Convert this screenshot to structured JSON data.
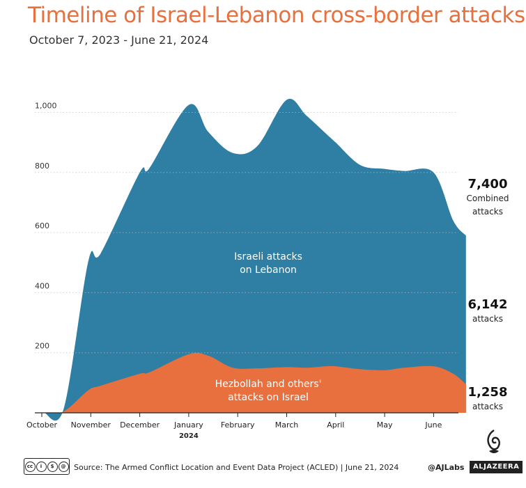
{
  "title": "Timeline of Israel-Lebanon cross-border attacks",
  "subtitle": "October 7, 2023 - June 21, 2024",
  "chart_data": {
    "type": "area",
    "stacked": true,
    "x_ticks": [
      "October",
      "November",
      "December",
      "January",
      "February",
      "March",
      "April",
      "May",
      "June"
    ],
    "x_year_label": "2024",
    "y_ticks": [
      "200",
      "400",
      "600",
      "800",
      "1,000"
    ],
    "ylim": [
      0,
      1100
    ],
    "grid": "horizontal-dotted",
    "x_month_index": [
      0.05,
      0.45,
      0.95,
      1.2,
      2.0,
      2.2,
      3.0,
      3.4,
      3.9,
      4.4,
      5.0,
      5.4,
      5.8,
      6.0,
      6.5,
      7.0,
      7.4,
      8.0,
      8.4,
      8.66
    ],
    "series": [
      {
        "name": "Hezbollah and others' attacks on Israel",
        "label_lines": [
          "Hezbollah and others'",
          "attacks on Israel"
        ],
        "color": "#e8703e",
        "values": [
          0,
          5,
          75,
          90,
          130,
          135,
          195,
          190,
          150,
          148,
          152,
          150,
          155,
          155,
          145,
          142,
          150,
          155,
          130,
          95
        ]
      },
      {
        "name": "Israeli attacks on Lebanon",
        "label_lines": [
          "Israeli attacks",
          "on Lebanon"
        ],
        "color": "#2e7fa3",
        "values": [
          0,
          10,
          430,
          440,
          670,
          680,
          830,
          745,
          715,
          740,
          890,
          840,
          775,
          745,
          680,
          670,
          655,
          645,
          510,
          495
        ]
      }
    ],
    "annotations": [
      {
        "value": "7,400",
        "lines": [
          "Combined",
          "attacks"
        ]
      },
      {
        "value": "6,142",
        "lines": [
          "attacks"
        ]
      },
      {
        "value": "1,258",
        "lines": [
          "attacks"
        ]
      }
    ]
  },
  "footer": {
    "source": "Source: The Armed Conflict Location and Event Data Project (ACLED) | June 21, 2024",
    "handle": "@AJLabs",
    "logo": "ALJAZEERA",
    "license_icon": "creative-commons-by-nc-sa-icon"
  }
}
